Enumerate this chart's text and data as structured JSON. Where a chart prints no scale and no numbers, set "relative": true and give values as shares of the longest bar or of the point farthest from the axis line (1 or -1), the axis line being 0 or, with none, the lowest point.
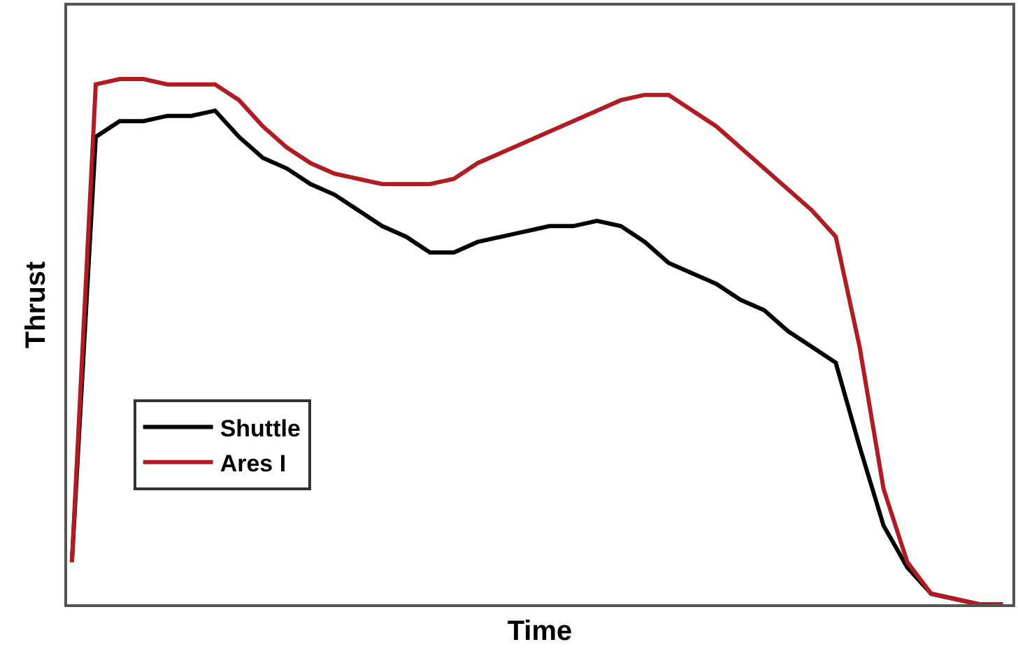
{
  "chart_data": {
    "type": "line",
    "relative": true,
    "xlabel": "Time",
    "ylabel": "Thrust",
    "categories": [
      null,
      null,
      null,
      null,
      null,
      null,
      null,
      null,
      null,
      null,
      null,
      null,
      null,
      null,
      null,
      null,
      null,
      null,
      null,
      null,
      null,
      null,
      null,
      null,
      null,
      null,
      null,
      null,
      null,
      null,
      null,
      null,
      null,
      null,
      null,
      null,
      null,
      null,
      null,
      null
    ],
    "series": [
      {
        "name": "Shuttle",
        "color": "#000000",
        "values": [
          0.08,
          0.89,
          0.92,
          0.92,
          0.93,
          0.93,
          0.94,
          0.89,
          0.85,
          0.83,
          0.8,
          0.78,
          0.75,
          0.72,
          0.7,
          0.67,
          0.67,
          0.69,
          0.7,
          0.71,
          0.72,
          0.72,
          0.73,
          0.72,
          0.69,
          0.65,
          0.63,
          0.61,
          0.58,
          0.56,
          0.52,
          0.49,
          0.46,
          0.3,
          0.15,
          0.07,
          0.02,
          0.01,
          0,
          0
        ]
      },
      {
        "name": "Ares I",
        "color": "#b01c22",
        "values": [
          0.08,
          0.99,
          1,
          1,
          0.99,
          0.99,
          0.99,
          0.96,
          0.91,
          0.87,
          0.84,
          0.82,
          0.81,
          0.8,
          0.8,
          0.8,
          0.81,
          0.84,
          0.86,
          0.88,
          0.9,
          0.92,
          0.94,
          0.96,
          0.97,
          0.97,
          0.94,
          0.91,
          0.87,
          0.83,
          0.79,
          0.75,
          0.7,
          0.49,
          0.22,
          0.08,
          0.02,
          0.01,
          0,
          0
        ]
      }
    ],
    "legend": "bottom left",
    "marker": "none",
    "line_style": "solid"
  }
}
